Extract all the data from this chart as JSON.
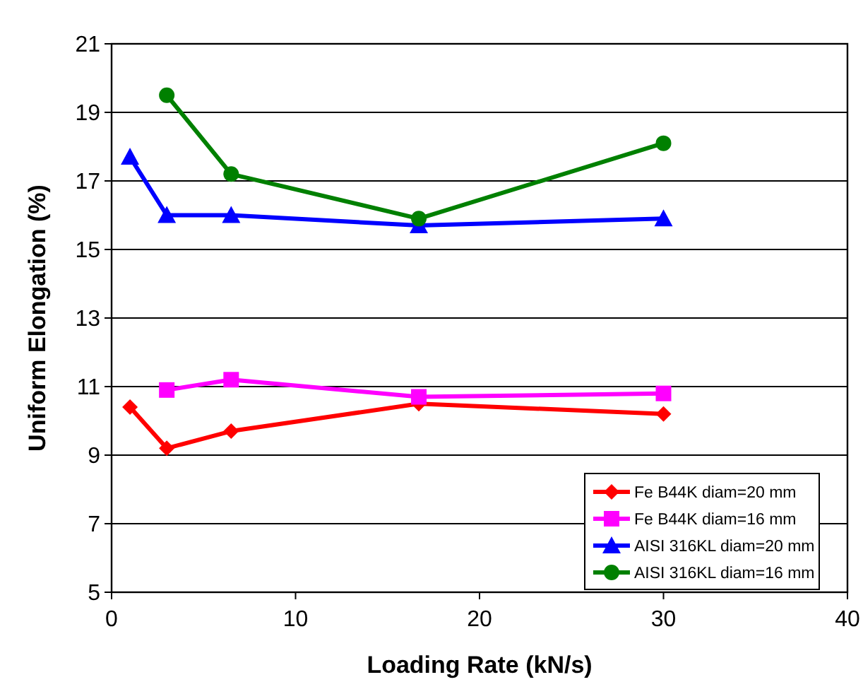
{
  "chart_data": {
    "type": "line",
    "xlabel": "Loading Rate (kN/s)",
    "ylabel": "Uniform Elongation (%)",
    "xlim": [
      0,
      40
    ],
    "xticks": [
      0,
      10,
      20,
      30,
      40
    ],
    "ylim": [
      5,
      21
    ],
    "yticks": [
      5,
      7,
      9,
      11,
      13,
      15,
      17,
      19,
      21
    ],
    "grid": "y",
    "legend": "bottom right",
    "series": [
      {
        "name": "Fe B44K diam=20 mm",
        "color": "#ff0000",
        "marker": "diamond",
        "x": [
          1,
          3,
          6.5,
          16.7,
          30
        ],
        "values": [
          10.4,
          9.2,
          9.7,
          10.5,
          10.2
        ]
      },
      {
        "name": "Fe B44K diam=16 mm",
        "color": "#ff00ff",
        "marker": "square",
        "x": [
          3,
          6.5,
          16.7,
          30
        ],
        "values": [
          10.9,
          11.2,
          10.7,
          10.8
        ]
      },
      {
        "name": "AISI 316KL diam=20 mm",
        "color": "#0000ff",
        "marker": "triangle",
        "x": [
          1,
          3,
          6.5,
          16.7,
          30
        ],
        "values": [
          17.7,
          16.0,
          16.0,
          15.7,
          15.9
        ]
      },
      {
        "name": "AISI 316KL diam=16 mm",
        "color": "#008000",
        "marker": "circle",
        "x": [
          3,
          6.5,
          16.7,
          30
        ],
        "values": [
          19.5,
          17.2,
          15.9,
          18.1
        ]
      }
    ]
  }
}
